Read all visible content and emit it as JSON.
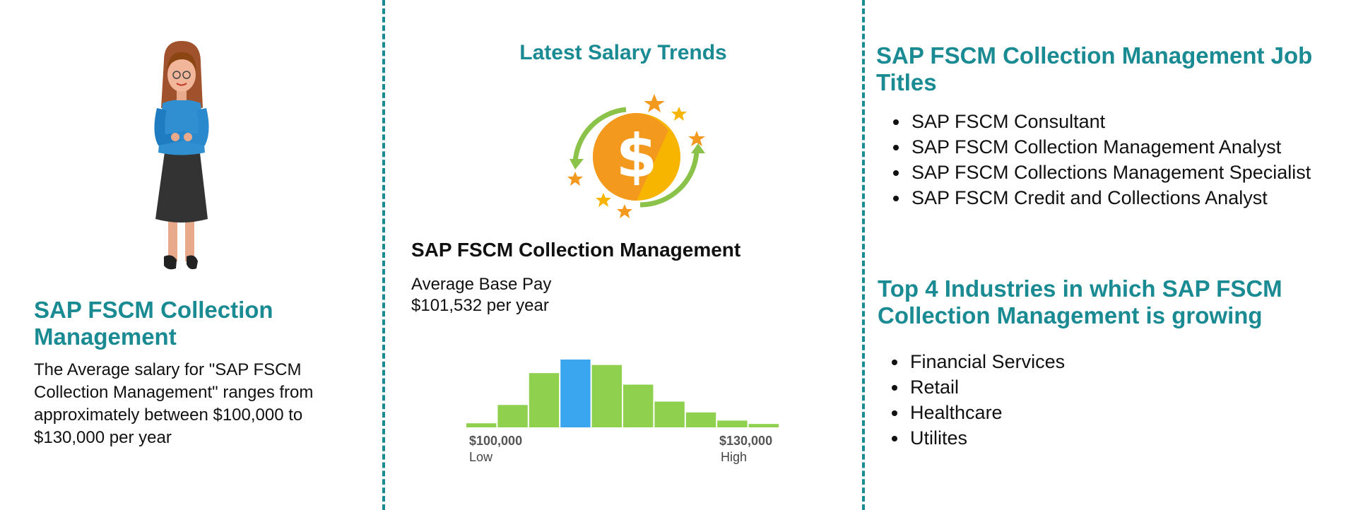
{
  "left": {
    "title": "SAP FSCM Collection Management",
    "description": "The Average salary for \"SAP FSCM Collection Management\" ranges from approximately between $100,000 to $130,000 per year",
    "illustration_icon": "woman-arms-crossed-illustration"
  },
  "middle": {
    "heading": "Latest Salary Trends",
    "icon": "dollar-coin-stars-icon",
    "title": "SAP FSCM Collection Management",
    "pay_label": "Average Base Pay",
    "pay_value": "$101,532 per year",
    "histogram": {
      "low_value": "$100,000",
      "low_label": "Low",
      "high_value": "$130,000",
      "high_label": "High",
      "bar_levels": [
        0.06,
        0.33,
        0.8,
        1.0,
        0.92,
        0.63,
        0.38,
        0.22,
        0.1,
        0.05
      ],
      "highlight_index": 3,
      "bar_color": "#8fd14f",
      "highlight_color": "#3aa6f0"
    }
  },
  "right": {
    "job_titles_heading": "SAP FSCM Collection Management Job Titles",
    "job_titles": [
      "SAP FSCM Consultant",
      "SAP FSCM Collection Management Analyst",
      "SAP FSCM Collections Management Specialist",
      "SAP FSCM Credit and Collections Analyst"
    ],
    "industries_heading": "Top 4 Industries in which SAP FSCM Collection Management  is growing",
    "industries": [
      "Financial Services",
      "Retail",
      "Healthcare",
      "Utilites"
    ]
  },
  "colors": {
    "accent": "#1a8a93",
    "text": "#111111"
  }
}
